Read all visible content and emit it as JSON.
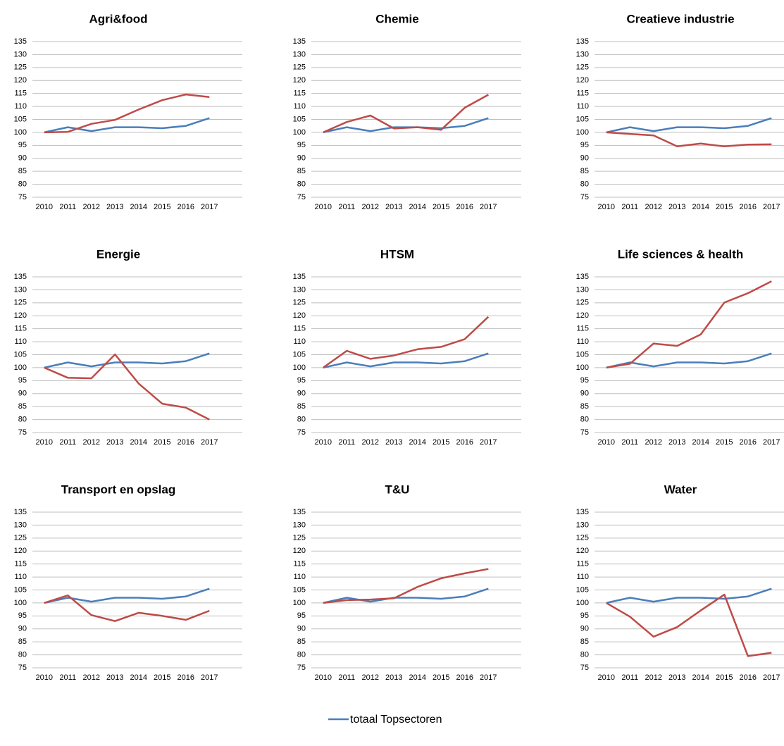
{
  "chart_data": [
    {
      "type": "line",
      "title": "Agri&food",
      "categories": [
        "2010",
        "2011",
        "2012",
        "2013",
        "2014",
        "2015",
        "2016",
        "2017"
      ],
      "ylim": [
        75,
        135
      ],
      "yticks": [
        75,
        80,
        85,
        90,
        95,
        100,
        105,
        110,
        115,
        120,
        125,
        130,
        135
      ],
      "grid": true,
      "series": [
        {
          "color": "#4a7ebb",
          "values": [
            100,
            102,
            100.5,
            102,
            102,
            101.6,
            102.5,
            105.5
          ]
        },
        {
          "color": "#be4b48",
          "values": [
            100,
            100.2,
            103.3,
            104.8,
            108.8,
            112.4,
            114.6,
            113.6
          ]
        }
      ]
    },
    {
      "type": "line",
      "title": "Chemie",
      "categories": [
        "2010",
        "2011",
        "2012",
        "2013",
        "2014",
        "2015",
        "2016",
        "2017"
      ],
      "ylim": [
        75,
        135
      ],
      "yticks": [
        75,
        80,
        85,
        90,
        95,
        100,
        105,
        110,
        115,
        120,
        125,
        130,
        135
      ],
      "grid": true,
      "series": [
        {
          "color": "#4a7ebb",
          "values": [
            100,
            102,
            100.5,
            102,
            102,
            101.6,
            102.5,
            105.5
          ]
        },
        {
          "color": "#be4b48",
          "values": [
            100,
            104,
            106.5,
            101.5,
            102,
            101,
            109.5,
            114.5
          ]
        }
      ]
    },
    {
      "type": "line",
      "title": "Creatieve industrie",
      "categories": [
        "2010",
        "2011",
        "2012",
        "2013",
        "2014",
        "2015",
        "2016",
        "2017"
      ],
      "ylim": [
        75,
        135
      ],
      "yticks": [
        75,
        80,
        85,
        90,
        95,
        100,
        105,
        110,
        115,
        120,
        125,
        130,
        135
      ],
      "grid": true,
      "series": [
        {
          "color": "#4a7ebb",
          "values": [
            100,
            102,
            100.5,
            102,
            102,
            101.6,
            102.5,
            105.5
          ]
        },
        {
          "color": "#be4b48",
          "values": [
            100,
            99.4,
            98.8,
            94.6,
            95.7,
            94.6,
            95.3,
            95.4
          ]
        }
      ]
    },
    {
      "type": "line",
      "title": "Energie",
      "categories": [
        "2010",
        "2011",
        "2012",
        "2013",
        "2014",
        "2015",
        "2016",
        "2017"
      ],
      "ylim": [
        75,
        135
      ],
      "yticks": [
        75,
        80,
        85,
        90,
        95,
        100,
        105,
        110,
        115,
        120,
        125,
        130,
        135
      ],
      "grid": true,
      "series": [
        {
          "color": "#4a7ebb",
          "values": [
            100,
            102,
            100.5,
            102,
            102,
            101.6,
            102.5,
            105.5
          ]
        },
        {
          "color": "#be4b48",
          "values": [
            100,
            96.1,
            95.9,
            105.1,
            93.9,
            86.1,
            84.6,
            80
          ]
        }
      ]
    },
    {
      "type": "line",
      "title": "HTSM",
      "categories": [
        "2010",
        "2011",
        "2012",
        "2013",
        "2014",
        "2015",
        "2016",
        "2017"
      ],
      "ylim": [
        75,
        135
      ],
      "yticks": [
        75,
        80,
        85,
        90,
        95,
        100,
        105,
        110,
        115,
        120,
        125,
        130,
        135
      ],
      "grid": true,
      "series": [
        {
          "color": "#4a7ebb",
          "values": [
            100,
            102,
            100.5,
            102,
            102,
            101.6,
            102.5,
            105.5
          ]
        },
        {
          "color": "#be4b48",
          "values": [
            100,
            106.5,
            103.4,
            104.7,
            107.1,
            108,
            111,
            119.6
          ]
        }
      ]
    },
    {
      "type": "line",
      "title": "Life sciences & health",
      "categories": [
        "2010",
        "2011",
        "2012",
        "2013",
        "2014",
        "2015",
        "2016",
        "2017"
      ],
      "ylim": [
        75,
        135
      ],
      "yticks": [
        75,
        80,
        85,
        90,
        95,
        100,
        105,
        110,
        115,
        120,
        125,
        130,
        135
      ],
      "grid": true,
      "series": [
        {
          "color": "#4a7ebb",
          "values": [
            100,
            102,
            100.5,
            102,
            102,
            101.6,
            102.5,
            105.5
          ]
        },
        {
          "color": "#be4b48",
          "values": [
            100,
            101.5,
            109.3,
            108.4,
            112.8,
            125.1,
            128.7,
            133.3
          ]
        }
      ]
    },
    {
      "type": "line",
      "title": "Transport  en opslag",
      "categories": [
        "2010",
        "2011",
        "2012",
        "2013",
        "2014",
        "2015",
        "2016",
        "2017"
      ],
      "ylim": [
        75,
        135
      ],
      "yticks": [
        75,
        80,
        85,
        90,
        95,
        100,
        105,
        110,
        115,
        120,
        125,
        130,
        135
      ],
      "grid": true,
      "series": [
        {
          "color": "#4a7ebb",
          "values": [
            100,
            102,
            100.5,
            102,
            102,
            101.6,
            102.5,
            105.5
          ]
        },
        {
          "color": "#be4b48",
          "values": [
            100,
            102.9,
            95.3,
            93,
            96.2,
            95,
            93.5,
            97
          ]
        }
      ]
    },
    {
      "type": "line",
      "title": "T&U",
      "categories": [
        "2010",
        "2011",
        "2012",
        "2013",
        "2014",
        "2015",
        "2016",
        "2017"
      ],
      "ylim": [
        75,
        135
      ],
      "yticks": [
        75,
        80,
        85,
        90,
        95,
        100,
        105,
        110,
        115,
        120,
        125,
        130,
        135
      ],
      "grid": true,
      "series": [
        {
          "color": "#4a7ebb",
          "values": [
            100,
            102,
            100.5,
            102,
            102,
            101.6,
            102.5,
            105.5
          ]
        },
        {
          "color": "#be4b48",
          "values": [
            100,
            101.1,
            101.3,
            101.8,
            106.2,
            109.5,
            111.4,
            113.1
          ]
        }
      ]
    },
    {
      "type": "line",
      "title": "Water",
      "categories": [
        "2010",
        "2011",
        "2012",
        "2013",
        "2014",
        "2015",
        "2016",
        "2017"
      ],
      "ylim": [
        75,
        135
      ],
      "yticks": [
        75,
        80,
        85,
        90,
        95,
        100,
        105,
        110,
        115,
        120,
        125,
        130,
        135
      ],
      "grid": true,
      "series": [
        {
          "color": "#4a7ebb",
          "values": [
            100,
            102,
            100.5,
            102,
            102,
            101.6,
            102.5,
            105.5
          ]
        },
        {
          "color": "#be4b48",
          "values": [
            100,
            94.7,
            87,
            90.7,
            97.1,
            103.2,
            79.5,
            80.8
          ]
        }
      ]
    }
  ],
  "legend": {
    "label": "totaal Topsectoren",
    "color": "#4a7ebb"
  }
}
